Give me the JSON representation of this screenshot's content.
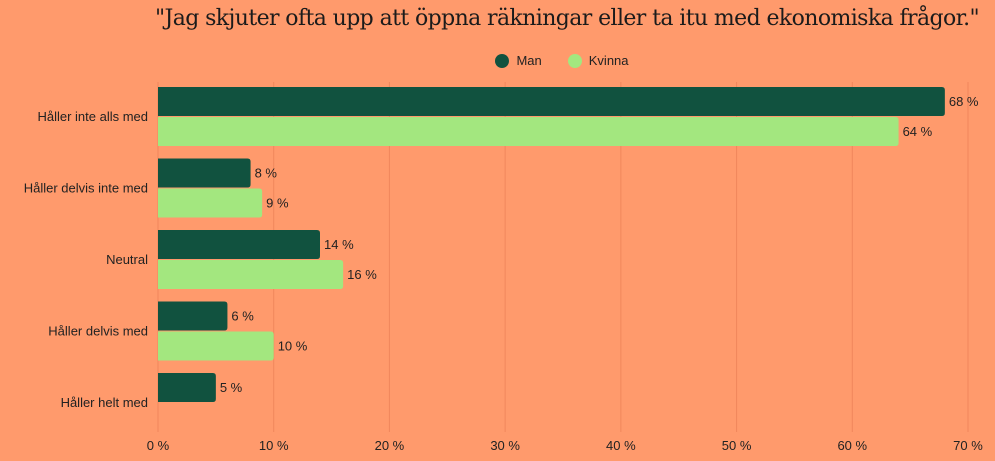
{
  "chart_data": {
    "type": "bar",
    "orientation": "horizontal",
    "title": "\"Jag skjuter ofta upp att öppna räkningar eller ta itu med ekonomiska frågor.\"",
    "categories": [
      "Håller inte alls med",
      "Håller delvis inte med",
      "Neutral",
      "Håller delvis med",
      "Håller helt med"
    ],
    "series": [
      {
        "name": "Man",
        "color": "#11523F",
        "values": [
          68,
          8,
          14,
          6,
          5
        ],
        "labels": [
          "68 %",
          "8 %",
          "14 %",
          "6 %",
          "5 %"
        ]
      },
      {
        "name": "Kvinna",
        "color": "#A3E77F",
        "values": [
          64,
          9,
          16,
          10,
          null
        ],
        "labels": [
          "64 %",
          "9 %",
          "16 %",
          "10 %",
          null
        ]
      }
    ],
    "xlim": [
      0,
      70
    ],
    "xticks": [
      0,
      10,
      20,
      30,
      40,
      50,
      60,
      70
    ],
    "xtick_labels": [
      "0 %",
      "10 %",
      "20 %",
      "30 %",
      "40 %",
      "50 %",
      "60 %",
      "70 %"
    ],
    "xlabel": "",
    "ylabel": "",
    "grid": true,
    "legend_position": "top-center",
    "background": "#FF9A6C",
    "grid_color": "#F0875C"
  }
}
